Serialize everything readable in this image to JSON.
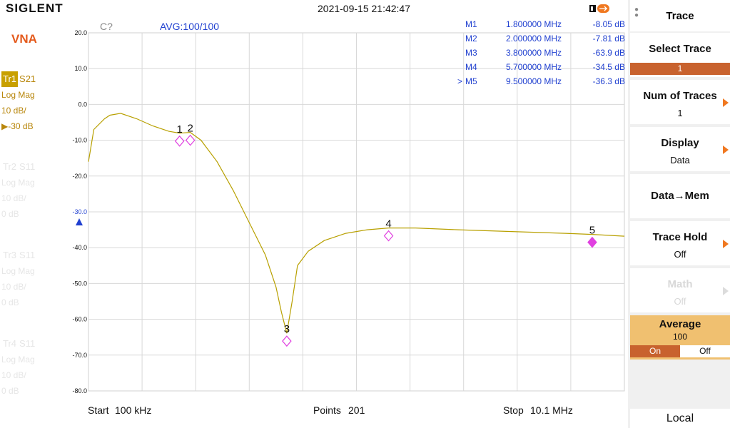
{
  "header": {
    "brand": "SIGLENT",
    "datetime": "2021-09-15 21:42:47",
    "battery_icon": "battery-usb-icon"
  },
  "mode": "VNA",
  "traces": [
    {
      "tag": "Tr1",
      "param": "S21",
      "format": "Log Mag",
      "scale": "10 dB/",
      "ref": "▶-30 dB",
      "active": true
    },
    {
      "tag": "Tr2",
      "param": "S11",
      "format": "Log Mag",
      "scale": "10 dB/",
      "ref": "0 dB",
      "active": false
    },
    {
      "tag": "Tr3",
      "param": "S11",
      "format": "Log Mag",
      "scale": "10 dB/",
      "ref": "0 dB",
      "active": false
    },
    {
      "tag": "Tr4",
      "param": "S11",
      "format": "Log Mag",
      "scale": "10 dB/",
      "ref": "0 dB",
      "active": false
    }
  ],
  "plot": {
    "cal_status": "C?",
    "average_status": "AVG:100/100",
    "ref_marker_label": "-30.0",
    "y_ticks": [
      "20.0",
      "10.0",
      "0.0",
      "-10.0",
      "-20.0",
      "-30.0",
      "-40.0",
      "-50.0",
      "-60.0",
      "-70.0",
      "-80.0"
    ],
    "markers": [
      {
        "id": "1",
        "name": "M1",
        "freq": "1.800000 MHz",
        "value": "-8.05 dB",
        "active": false
      },
      {
        "id": "2",
        "name": "M2",
        "freq": "2.000000 MHz",
        "value": "-7.81 dB",
        "active": false
      },
      {
        "id": "3",
        "name": "M3",
        "freq": "3.800000 MHz",
        "value": "-63.9 dB",
        "active": false
      },
      {
        "id": "4",
        "name": "M4",
        "freq": "5.700000 MHz",
        "value": "-34.5 dB",
        "active": false
      },
      {
        "id": "5",
        "name": "M5",
        "freq": "9.500000 MHz",
        "value": "-36.3 dB",
        "active": true
      }
    ],
    "active_marker_prefix": ">",
    "trace_color": "#b8a000",
    "marker_color": "#e040e0"
  },
  "chart_data": {
    "type": "line",
    "x_start_mhz": 0.1,
    "x_stop_mhz": 10.1,
    "ylim": [
      -80,
      20
    ],
    "y_unit": "dB",
    "series": [
      {
        "name": "S21",
        "x_mhz": [
          0.1,
          0.2,
          0.4,
          0.5,
          0.7,
          1.0,
          1.3,
          1.6,
          1.8,
          2.0,
          2.2,
          2.5,
          2.8,
          3.1,
          3.4,
          3.6,
          3.7,
          3.8,
          3.9,
          4.0,
          4.2,
          4.5,
          4.9,
          5.3,
          5.7,
          6.2,
          7.0,
          8.0,
          9.0,
          9.5,
          10.1
        ],
        "y_db": [
          -16,
          -7,
          -4,
          -3,
          -2.5,
          -4,
          -6,
          -7.5,
          -8,
          -7.8,
          -10,
          -16,
          -24,
          -33,
          -42,
          -51,
          -58,
          -63.9,
          -55,
          -45,
          -41,
          -38,
          -36,
          -35,
          -34.5,
          -34.5,
          -35,
          -35.5,
          -36,
          -36.3,
          -36.8
        ]
      }
    ]
  },
  "bottom": {
    "start_label": "Start",
    "start_value": "100 kHz",
    "points_label": "Points",
    "points_value": "201",
    "stop_label": "Stop",
    "stop_value": "10.1 MHz"
  },
  "softkeys": {
    "menu_title": "Trace",
    "select_trace": {
      "title": "Select Trace",
      "value": "1"
    },
    "num_traces": {
      "title": "Num of Traces",
      "value": "1"
    },
    "display": {
      "title": "Display",
      "value": "Data"
    },
    "data_mem": {
      "title": "Data→Mem"
    },
    "trace_hold": {
      "title": "Trace Hold",
      "value": "Off"
    },
    "math": {
      "title": "Math",
      "value": "Off"
    },
    "average": {
      "title": "Average",
      "value": "100",
      "on": "On",
      "off": "Off",
      "state": "On"
    },
    "local": "Local"
  }
}
